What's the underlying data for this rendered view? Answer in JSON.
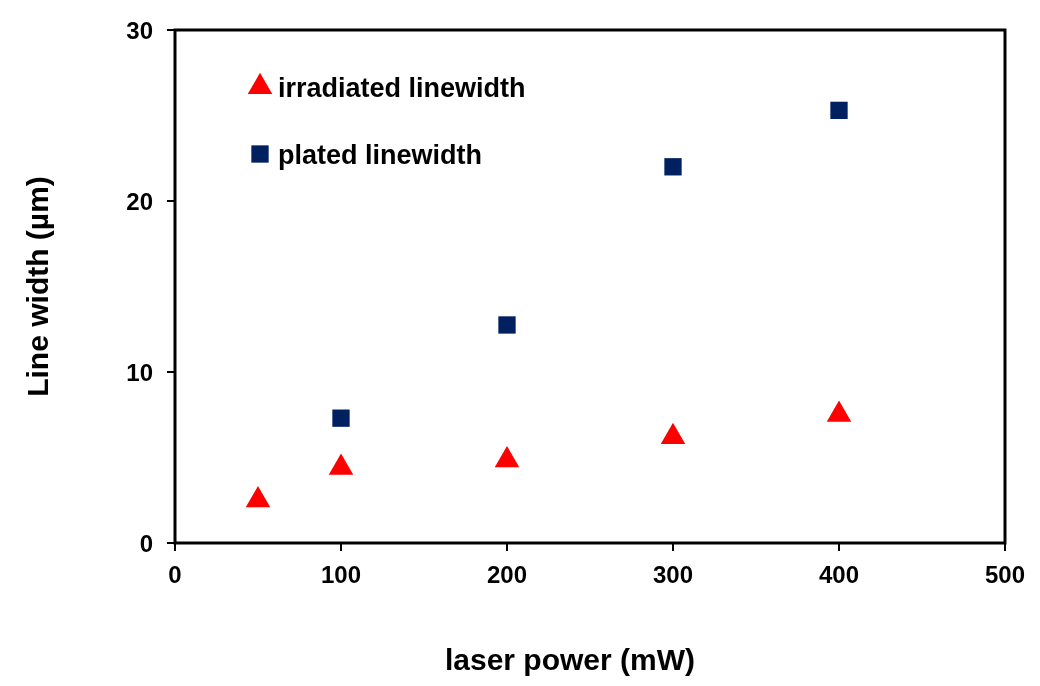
{
  "chart_data": {
    "type": "scatter",
    "xlabel": "laser power (mW)",
    "ylabel": "Line width (µm)",
    "xlim": [
      0,
      500
    ],
    "xticks": [
      0,
      100,
      200,
      300,
      400,
      500
    ],
    "ylim": [
      0,
      30
    ],
    "yticks": [
      0,
      10,
      20,
      30
    ],
    "legend": "top left",
    "grid": false,
    "series": [
      {
        "name": "irradiated linewidth",
        "color": "#ff0000",
        "marker": "triangle",
        "x": [
          50,
          100,
          200,
          300,
          400
        ],
        "values": [
          2.5,
          4.4,
          4.85,
          6.2,
          7.5
        ]
      },
      {
        "name": "plated linewidth",
        "color": "#002060",
        "marker": "square",
        "x": [
          100,
          200,
          300,
          400
        ],
        "values": [
          7.3,
          12.75,
          22.0,
          25.3
        ]
      }
    ]
  }
}
